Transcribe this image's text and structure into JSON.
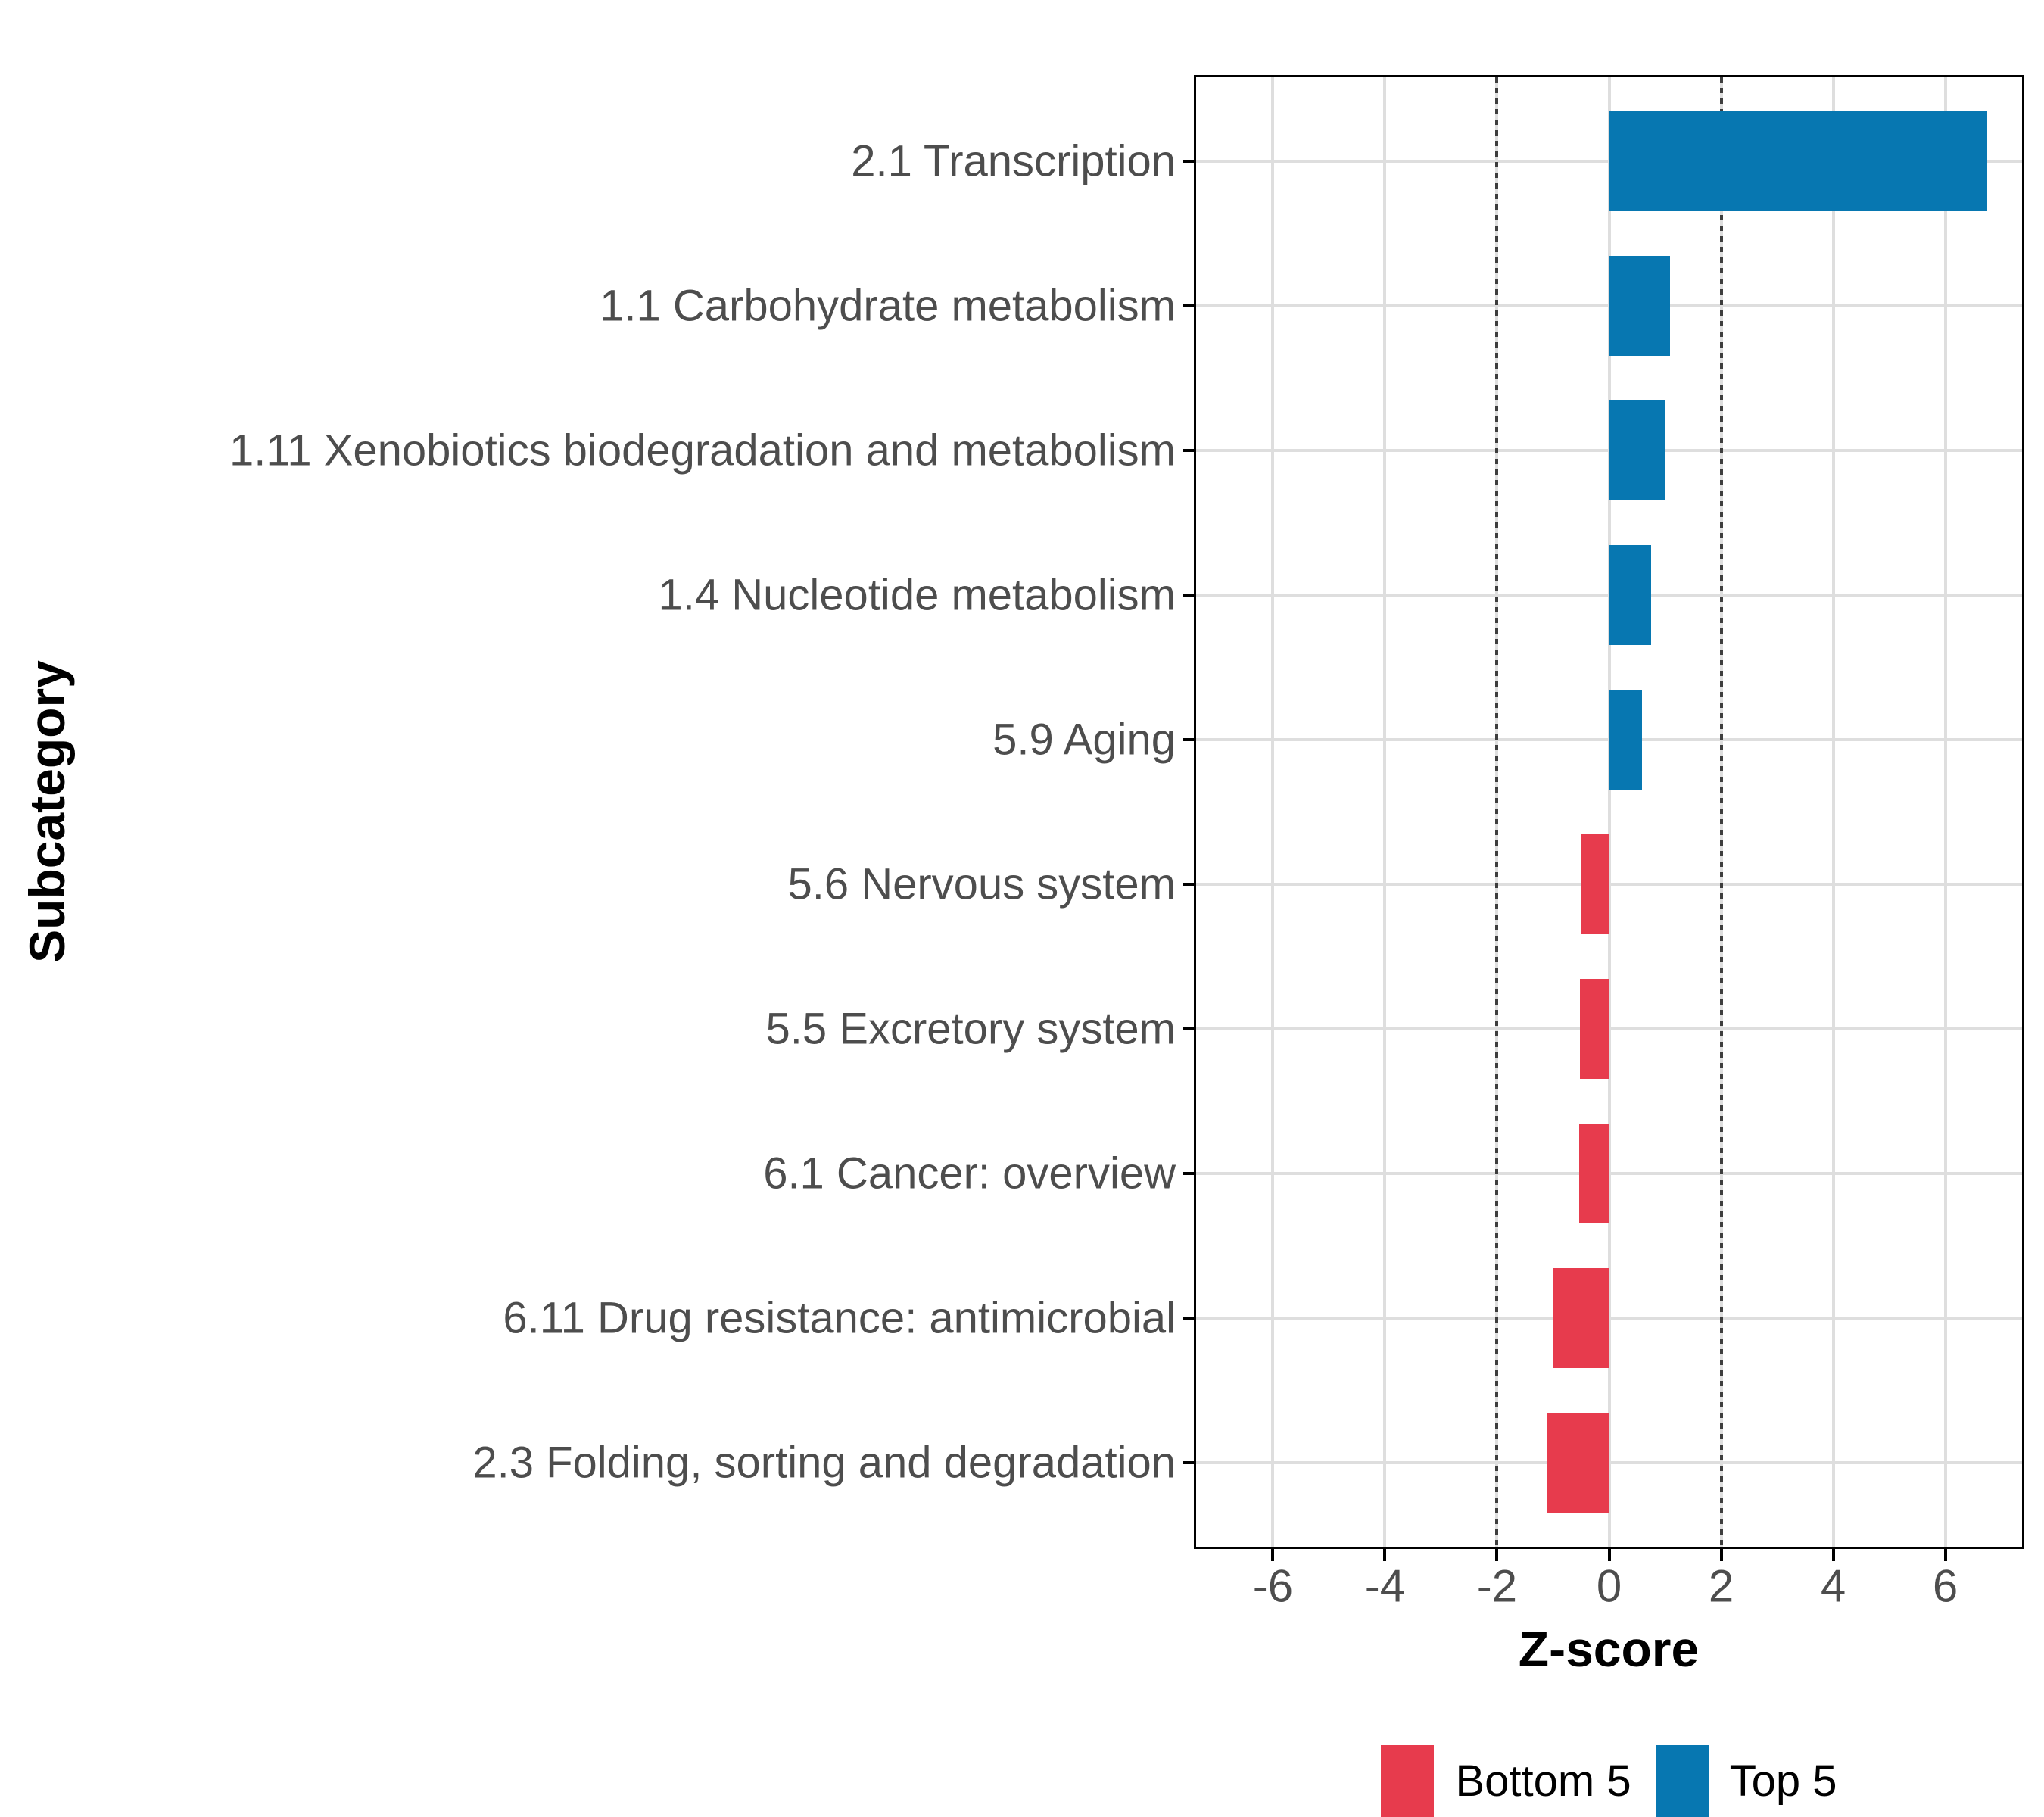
{
  "chart_data": {
    "type": "bar",
    "orientation": "horizontal",
    "title": "",
    "xlabel": "Z-score",
    "ylabel": "Subcategory",
    "xlim": [
      -7.37,
      7.37
    ],
    "x_ticks": [
      -6,
      -4,
      -2,
      0,
      2,
      4,
      6
    ],
    "reference_lines_x": [
      -2,
      2
    ],
    "grid": "major-only",
    "categories": [
      "2.1 Transcription",
      "1.1 Carbohydrate metabolism",
      "1.11 Xenobiotics biodegradation and metabolism",
      "1.4 Nucleotide metabolism",
      "5.9 Aging",
      "5.6 Nervous system",
      "5.5 Excretory system",
      "6.1 Cancer: overview",
      "6.11 Drug resistance: antimicrobial",
      "2.3 Folding, sorting and degradation"
    ],
    "values": [
      6.75,
      1.09,
      0.99,
      0.75,
      0.59,
      -0.51,
      -0.52,
      -0.53,
      -0.99,
      -1.1
    ],
    "bar_groups": [
      "Top 5",
      "Top 5",
      "Top 5",
      "Top 5",
      "Top 5",
      "Bottom 5",
      "Bottom 5",
      "Bottom 5",
      "Bottom 5",
      "Bottom 5"
    ],
    "colors": {
      "Top 5": "#0777B1",
      "Bottom 5": "#E73B4D"
    },
    "grid_color": "#DEDEDE",
    "reference_line_color": "#3E3E3E",
    "axis_text_color": "#4D4D4D",
    "panel_border_color": "#000000",
    "legend": {
      "position": "bottom",
      "items": [
        {
          "label": "Bottom 5",
          "color": "#E73B4D"
        },
        {
          "label": "Top 5",
          "color": "#0777B1"
        }
      ]
    }
  }
}
